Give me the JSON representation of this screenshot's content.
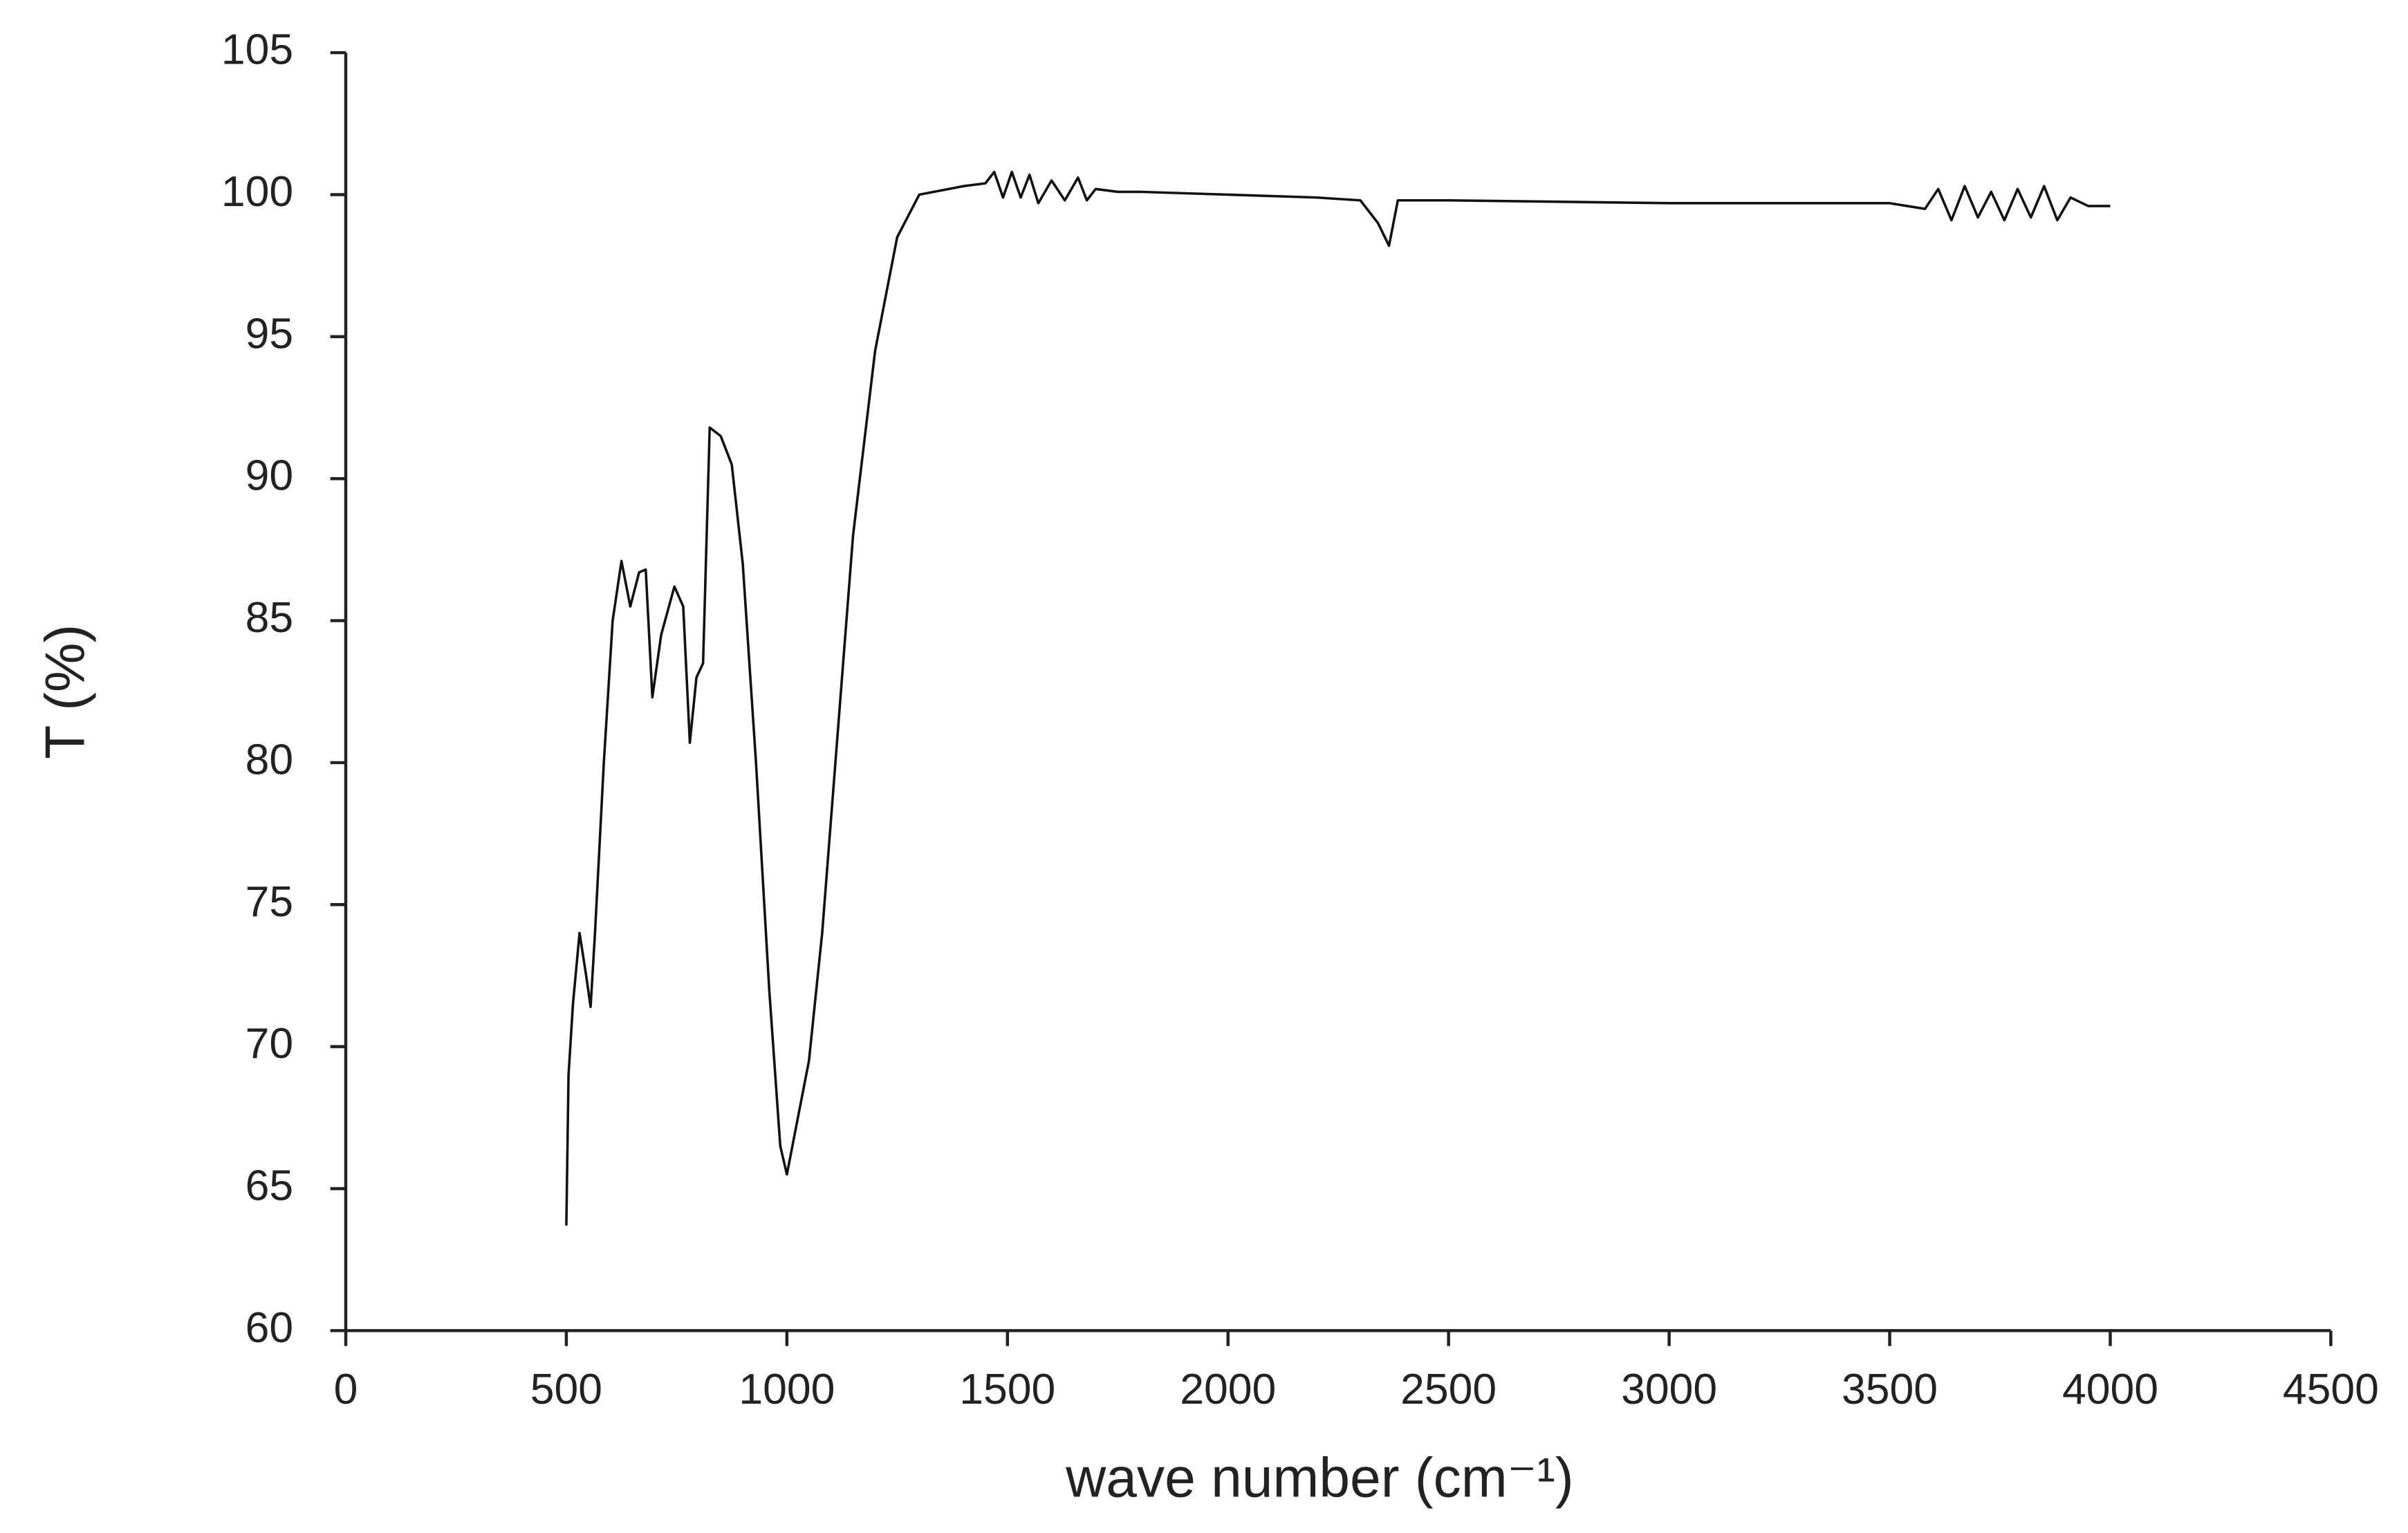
{
  "chart_data": {
    "type": "line",
    "x_label": "wave number (cm⁻¹)",
    "y_label": "T (%)",
    "xlim": [
      0,
      4500
    ],
    "ylim": [
      60,
      105
    ],
    "xticks": [
      0,
      500,
      1000,
      1500,
      2000,
      2500,
      3000,
      3500,
      4000,
      4500
    ],
    "yticks": [
      60,
      65,
      70,
      75,
      80,
      85,
      90,
      95,
      100,
      105
    ],
    "grid": false,
    "series": [
      {
        "color": "#111111",
        "x": [
          500,
          505,
          515,
          530,
          545,
          555,
          565,
          585,
          605,
          625,
          645,
          665,
          680,
          695,
          715,
          745,
          765,
          780,
          795,
          810,
          825,
          850,
          875,
          900,
          930,
          960,
          985,
          1000,
          1025,
          1050,
          1080,
          1110,
          1150,
          1200,
          1250,
          1300,
          1400,
          1450,
          1470,
          1490,
          1510,
          1530,
          1550,
          1570,
          1600,
          1630,
          1660,
          1680,
          1700,
          1750,
          1800,
          2000,
          2200,
          2300,
          2340,
          2365,
          2385,
          2500,
          3000,
          3500,
          3580,
          3610,
          3640,
          3670,
          3700,
          3730,
          3760,
          3790,
          3820,
          3850,
          3880,
          3910,
          3950,
          4000
        ],
        "values": [
          63.7,
          69,
          71.5,
          74,
          72.5,
          71.4,
          74,
          80,
          85,
          87.1,
          85.5,
          86.7,
          86.8,
          82.3,
          84.5,
          86.2,
          85.5,
          80.7,
          83,
          83.5,
          91.8,
          91.5,
          90.5,
          87,
          80,
          72,
          66.5,
          65.5,
          67.5,
          69.5,
          74,
          80,
          88,
          94.5,
          98.5,
          100,
          100.3,
          100.4,
          100.8,
          99.9,
          100.8,
          99.9,
          100.7,
          99.7,
          100.5,
          99.8,
          100.6,
          99.8,
          100.2,
          100.1,
          100.1,
          100,
          99.9,
          99.8,
          99,
          98.2,
          99.8,
          99.8,
          99.7,
          99.7,
          99.5,
          100.2,
          99.1,
          100.3,
          99.2,
          100.1,
          99.1,
          100.2,
          99.2,
          100.3,
          99.1,
          99.9,
          99.6,
          99.6
        ]
      }
    ]
  }
}
